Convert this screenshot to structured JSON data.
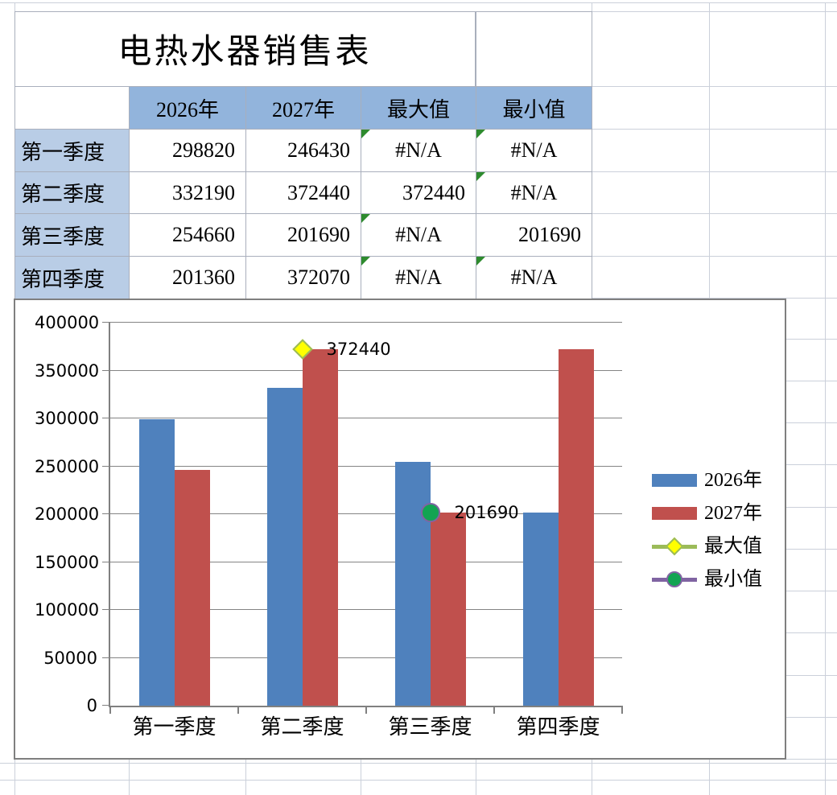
{
  "sheet": {
    "title": "电热水器销售表",
    "columns": [
      "",
      "2026年",
      "2027年",
      "最大值",
      "最小值"
    ],
    "rows": [
      {
        "label": "第一季度",
        "y2026": "298820",
        "y2027": "246430",
        "max": {
          "value": "#N/A",
          "error_flag": true
        },
        "min": {
          "value": "#N/A",
          "error_flag": true
        }
      },
      {
        "label": "第二季度",
        "y2026": "332190",
        "y2027": "372440",
        "max": {
          "value": "372440",
          "error_flag": false
        },
        "min": {
          "value": "#N/A",
          "error_flag": true
        }
      },
      {
        "label": "第三季度",
        "y2026": "254660",
        "y2027": "201690",
        "max": {
          "value": "#N/A",
          "error_flag": true
        },
        "min": {
          "value": "201690",
          "error_flag": false
        }
      },
      {
        "label": "第四季度",
        "y2026": "201360",
        "y2027": "372070",
        "max": {
          "value": "#N/A",
          "error_flag": true
        },
        "min": {
          "value": "#N/A",
          "error_flag": true
        }
      }
    ],
    "header_fill": "#92B4DC",
    "label_fill": "#B9CDE6",
    "error_flag_color": "#2E8B2E"
  },
  "chart_data": {
    "type": "bar",
    "categories": [
      "第一季度",
      "第二季度",
      "第三季度",
      "第四季度"
    ],
    "series": [
      {
        "name": "2026年",
        "chart_type": "bar",
        "color": "#4F81BD",
        "values": [
          298820,
          332190,
          254660,
          201360
        ]
      },
      {
        "name": "2027年",
        "chart_type": "bar",
        "color": "#C0504D",
        "values": [
          246430,
          372440,
          201690,
          372070
        ]
      },
      {
        "name": "最大值",
        "chart_type": "line",
        "color": "#9BBB59",
        "marker": "diamond",
        "marker_fill": "#FFFF00",
        "values": [
          null,
          372440,
          null,
          null
        ],
        "point_labels": [
          null,
          "372440",
          null,
          null
        ]
      },
      {
        "name": "最小值",
        "chart_type": "line",
        "color": "#8064A2",
        "marker": "circle",
        "marker_fill": "#12A452",
        "values": [
          null,
          null,
          201690,
          null
        ],
        "point_labels": [
          null,
          null,
          "201690",
          null
        ]
      }
    ],
    "ylim": [
      0,
      400000
    ],
    "yticks": [
      0,
      50000,
      100000,
      150000,
      200000,
      250000,
      300000,
      350000,
      400000
    ],
    "grid": true,
    "legend_position": "right",
    "plot_gridline_color": "#848484",
    "axis_color": "#808080"
  }
}
